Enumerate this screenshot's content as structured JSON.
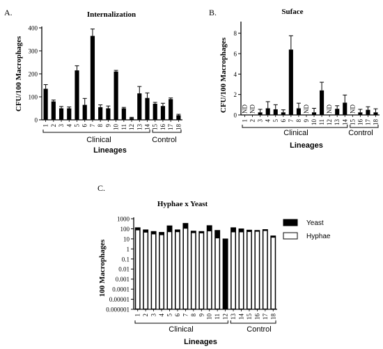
{
  "panels": [
    {
      "letter": "A.",
      "title": "Internalization"
    },
    {
      "letter": "B.",
      "title": "Suface"
    },
    {
      "letter": "C.",
      "title": "Hyphae x Yeast"
    }
  ],
  "colors": {
    "bar": "#000000",
    "hyphae": "#ffffff",
    "stroke": "#000000"
  },
  "chart_data": [
    {
      "type": "bar",
      "title": "Internalization",
      "ylabel": "CFU/100 Macrophages",
      "xlabel": "Lineages",
      "ylim": [
        0,
        400
      ],
      "yticks": [
        "0",
        "100",
        "200",
        "300",
        "400"
      ],
      "categories": [
        "1",
        "2",
        "3",
        "4",
        "5",
        "6",
        "7",
        "8",
        "9",
        "10",
        "11",
        "12",
        "13",
        "14",
        "15",
        "16",
        "17",
        "18"
      ],
      "values": [
        135,
        80,
        50,
        50,
        215,
        65,
        365,
        55,
        50,
        210,
        50,
        8,
        115,
        95,
        70,
        60,
        90,
        20
      ],
      "errors": [
        18,
        6,
        8,
        6,
        20,
        28,
        30,
        10,
        10,
        5,
        4,
        3,
        30,
        22,
        6,
        12,
        5,
        4
      ],
      "groups": [
        {
          "label": "Clinical",
          "from": "1",
          "to": "14"
        },
        {
          "label": "Control",
          "from": "15",
          "to": "18"
        }
      ]
    },
    {
      "type": "bar",
      "title": "Suface",
      "ylabel": "CFU/100 Macrophages",
      "xlabel": "Lineages",
      "ylim": [
        0,
        9
      ],
      "yticks": [
        "0",
        "2",
        "4",
        "6",
        "8"
      ],
      "categories": [
        "1",
        "2",
        "3",
        "4",
        "5",
        "6",
        "7",
        "8",
        "9",
        "10",
        "11",
        "12",
        "13",
        "14",
        "15",
        "16",
        "17",
        "18"
      ],
      "values": [
        null,
        null,
        0.25,
        0.65,
        0.55,
        0.25,
        6.4,
        0.65,
        null,
        0.25,
        2.4,
        null,
        0.6,
        1.2,
        null,
        0.25,
        0.5,
        0.25
      ],
      "errors": [
        0,
        0,
        0.3,
        0.65,
        0.45,
        0.25,
        1.35,
        0.5,
        0,
        0.4,
        0.8,
        0,
        0.3,
        0.75,
        0,
        0.3,
        0.3,
        0.35
      ],
      "nd_label": "ND",
      "groups": [
        {
          "label": "Clinical",
          "from": "1",
          "to": "14"
        },
        {
          "label": "Control",
          "from": "15",
          "to": "18"
        }
      ]
    },
    {
      "type": "bar",
      "title": "Hyphae x Yeast",
      "ylabel": "100 Macrophages",
      "xlabel": "Lineages",
      "scale": "log",
      "ylim": [
        1e-06,
        1000
      ],
      "yticks": [
        "1000",
        "100",
        "10",
        "1",
        "0.1",
        "0.01",
        "0.001",
        "0.0001",
        "0.00001",
        "0.000001"
      ],
      "categories": [
        "1",
        "2",
        "3",
        "4",
        "5",
        "6",
        "7",
        "8",
        "9",
        "10",
        "11",
        "12",
        "13",
        "14",
        "15",
        "16",
        "17",
        "18"
      ],
      "series": [
        {
          "name": "Yeast",
          "values": [
            130,
            80,
            55,
            45,
            200,
            80,
            350,
            60,
            55,
            210,
            70,
            10,
            130,
            100,
            75,
            70,
            85,
            20
          ]
        },
        {
          "name": "Hyphae",
          "values": [
            75,
            45,
            30,
            25,
            50,
            50,
            110,
            40,
            38,
            60,
            12,
            6,
            48,
            48,
            52,
            55,
            65,
            14
          ]
        }
      ],
      "legend_position": "right",
      "groups": [
        {
          "label": "Clinical",
          "from": "1",
          "to": "12"
        },
        {
          "label": "Control",
          "from": "13",
          "to": "18"
        }
      ]
    }
  ]
}
